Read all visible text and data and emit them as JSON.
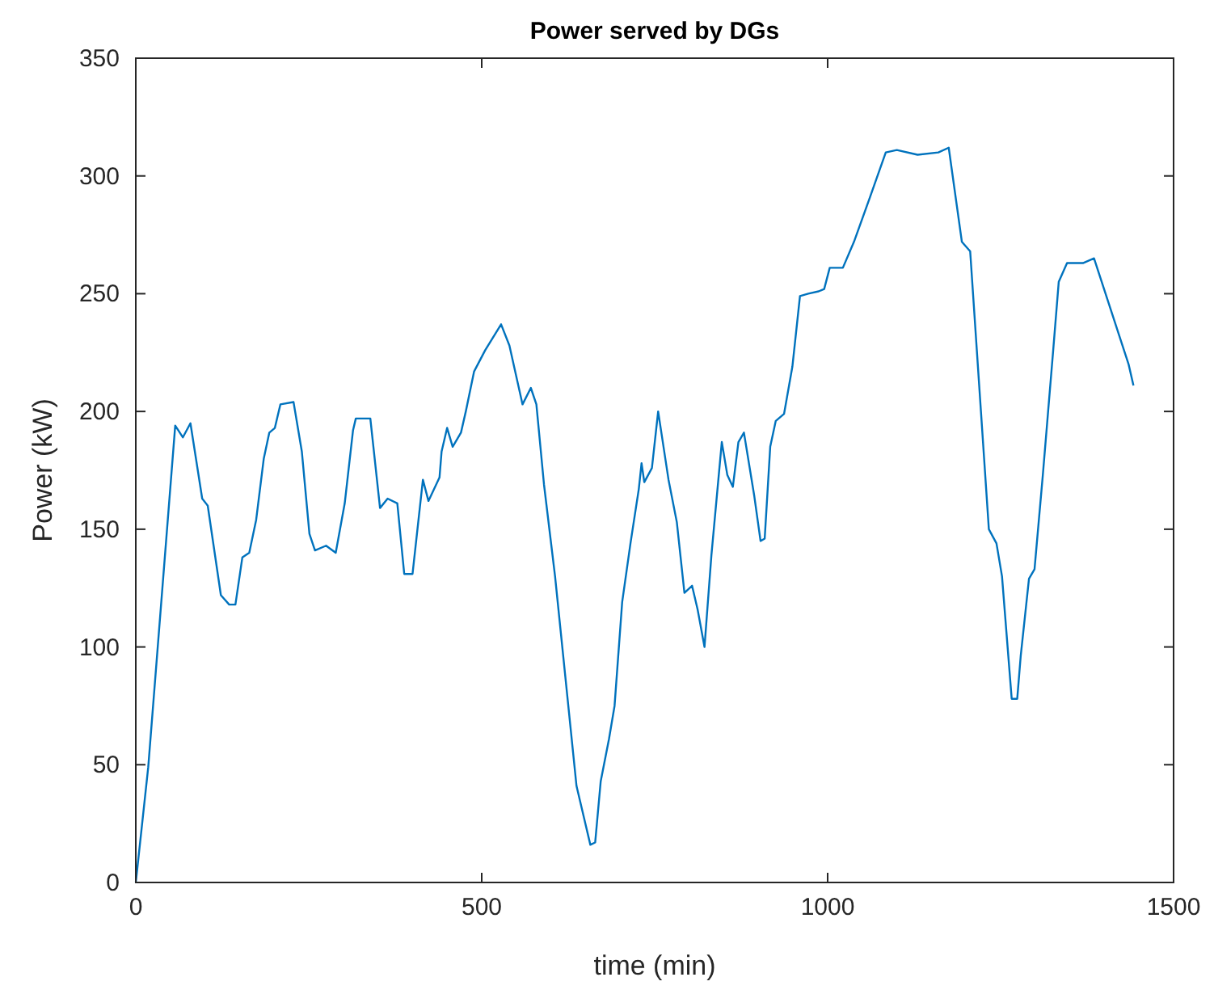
{
  "chart_data": {
    "type": "line",
    "title": "Power served by DGs",
    "xlabel": "time (min)",
    "ylabel": "Power (kW)",
    "xlim": [
      0,
      1500
    ],
    "xticks": [
      0,
      500,
      1000,
      1500
    ],
    "ylim": [
      0,
      350
    ],
    "yticks": [
      0,
      50,
      100,
      150,
      200,
      250,
      300,
      350
    ],
    "grid": false,
    "series": [
      {
        "color": "#0072bd",
        "x": [
          0,
          18,
          57,
          68,
          79,
          96,
          104,
          123,
          135,
          144,
          154,
          164,
          174,
          185,
          193,
          201,
          209,
          228,
          240,
          251,
          259,
          275,
          289,
          302,
          314,
          318,
          339,
          353,
          364,
          378,
          388,
          400,
          415,
          423,
          439,
          442,
          450,
          458,
          470,
          477,
          489,
          505,
          528,
          540,
          559,
          571,
          579,
          590,
          606,
          637,
          657,
          664,
          672,
          684,
          692,
          703,
          715,
          727,
          731,
          735,
          746,
          755,
          770,
          782,
          793,
          804,
          812,
          822,
          832,
          847,
          855,
          863,
          871,
          879,
          894,
          903,
          909,
          917,
          925,
          937,
          949,
          960,
          972,
          987,
          995,
          1003,
          1022,
          1038,
          1060,
          1084,
          1100,
          1130,
          1160,
          1175,
          1194,
          1206,
          1233,
          1244,
          1252,
          1266,
          1274,
          1279,
          1291,
          1299,
          1311,
          1326,
          1334,
          1346,
          1369,
          1385,
          1435,
          1442
        ],
        "values": [
          0,
          49,
          194,
          189,
          195,
          163,
          160,
          122,
          118,
          118,
          138,
          140,
          154,
          180,
          191,
          193,
          203,
          204,
          183,
          148,
          141,
          143,
          140,
          161,
          192,
          197,
          197,
          159,
          163,
          161,
          131,
          131,
          171,
          162,
          172,
          183,
          193,
          185,
          191,
          200,
          217,
          226,
          237,
          228,
          203,
          210,
          203,
          169,
          130,
          41,
          16,
          17,
          43,
          61,
          75,
          119,
          144,
          167,
          178,
          170,
          176,
          200,
          171,
          153,
          123,
          126,
          116,
          100,
          139,
          187,
          173,
          168,
          187,
          191,
          164,
          145,
          146,
          185,
          196,
          199,
          219,
          249,
          250,
          251,
          252,
          261,
          261,
          272,
          290,
          310,
          311,
          309,
          310,
          312,
          272,
          268,
          150,
          144,
          130,
          78,
          78,
          96,
          129,
          133,
          173,
          226,
          255,
          263,
          263,
          265,
          220,
          211
        ]
      }
    ]
  }
}
